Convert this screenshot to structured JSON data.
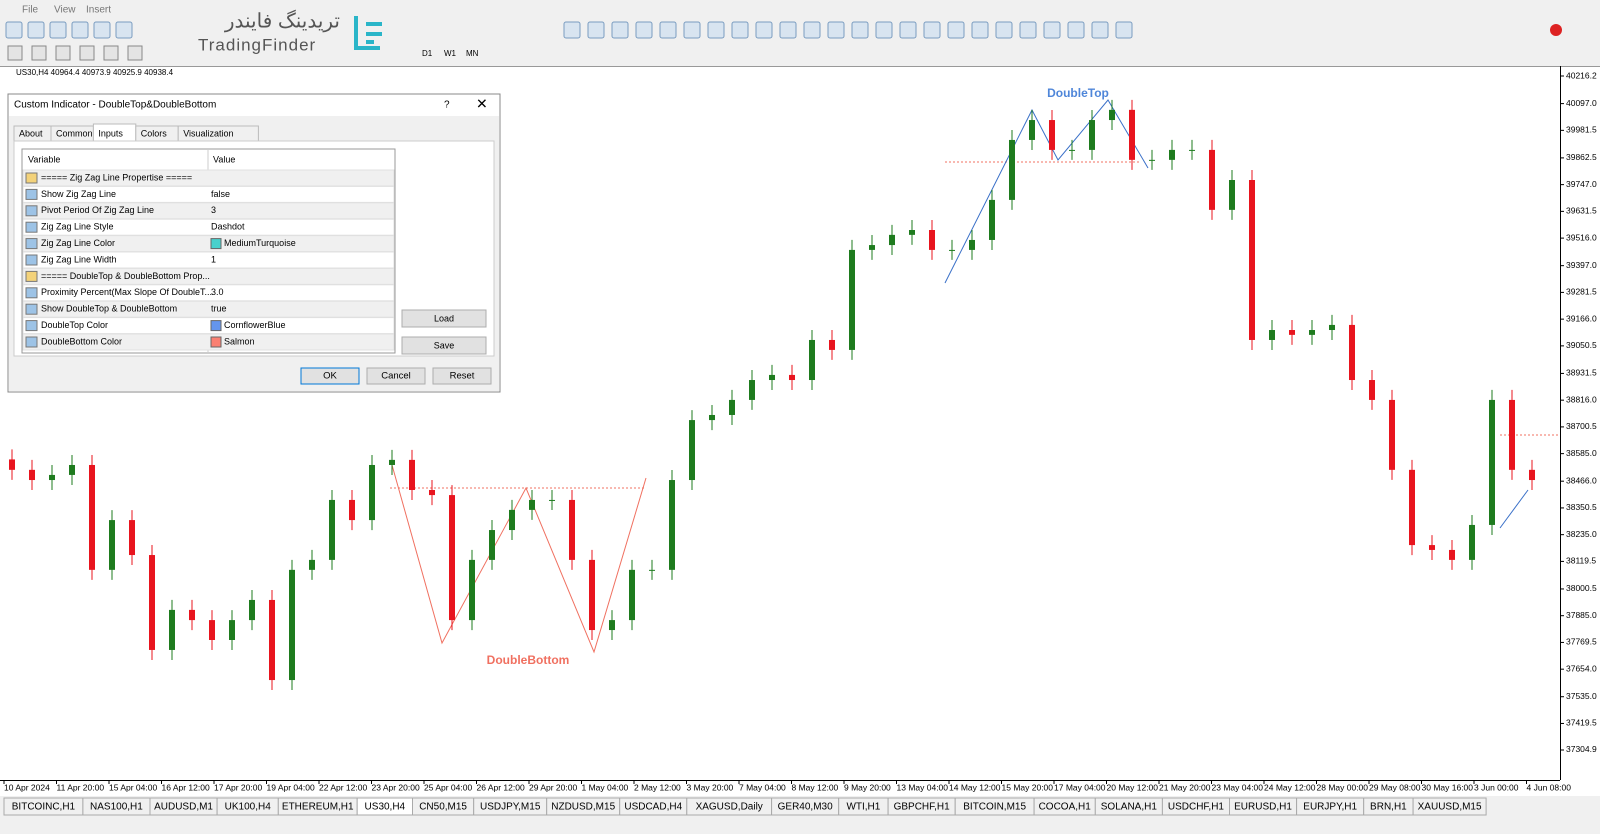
{
  "menu": [
    "File",
    "View",
    "Insert"
  ],
  "watermark": {
    "persian": "تریدینگ فایندر",
    "latin": "TradingFinder"
  },
  "timeframes": [
    "D1",
    "W1",
    "MN"
  ],
  "chart": {
    "symbol_info": "US30,H4  40964.4 40973.9 40925.9 40938.4",
    "annotations": {
      "double_top": "DoubleTop",
      "double_bottom": "DoubleBottom"
    },
    "first_open": 38560,
    "closes": [
      38515,
      38471,
      38493,
      38536,
      38083,
      38298,
      38147,
      37737,
      37910,
      37866,
      37780,
      37866,
      37953,
      37607,
      38083,
      38126,
      38385,
      38298,
      38536,
      38558,
      38428,
      38406,
      37866,
      38126,
      38255,
      38342,
      38385,
      38385,
      38126,
      37823,
      37866,
      38083,
      38083,
      38471,
      38730,
      38752,
      38817,
      38903,
      38925,
      38903,
      39076,
      39033,
      39465,
      39486,
      39530,
      39551,
      39465,
      39465,
      39508,
      39681,
      39940,
      40026,
      39897,
      39897,
      40026,
      40070,
      39854,
      39854,
      39897,
      39897,
      39638,
      39767,
      39076,
      39119,
      39098,
      39119,
      39141,
      38903,
      38817,
      38515,
      38190,
      38169,
      38126,
      38277,
      38817,
      38515,
      38471
    ],
    "up_color": "#1e7b1e",
    "down_color": "#e8141e",
    "ylim": [
      37183.9,
      40250.8
    ],
    "yticks": [
      {
        "value": 40216.2,
        "label": "40216.2"
      },
      {
        "value": 40097.0,
        "label": "40097.0"
      },
      {
        "value": 39981.5,
        "label": "39981.5"
      },
      {
        "value": 39862.5,
        "label": "39862.5"
      },
      {
        "value": 39747.0,
        "label": "39747.0"
      },
      {
        "value": 39631.5,
        "label": "39631.5"
      },
      {
        "value": 39516.0,
        "label": "39516.0"
      },
      {
        "value": 39397.0,
        "label": "39397.0"
      },
      {
        "value": 39281.5,
        "label": "39281.5"
      },
      {
        "value": 39166.0,
        "label": "39166.0"
      },
      {
        "value": 39050.5,
        "label": "39050.5"
      },
      {
        "value": 38931.5,
        "label": "38931.5"
      },
      {
        "value": 38816.0,
        "label": "38816.0"
      },
      {
        "value": 38700.5,
        "label": "38700.5"
      },
      {
        "value": 38585.0,
        "label": "38585.0"
      },
      {
        "value": 38466.0,
        "label": "38466.0"
      },
      {
        "value": 38350.5,
        "label": "38350.5"
      },
      {
        "value": 38235.0,
        "label": "38235.0"
      },
      {
        "value": 38119.5,
        "label": "38119.5"
      },
      {
        "value": 38000.5,
        "label": "38000.5"
      },
      {
        "value": 37885.0,
        "label": "37885.0"
      },
      {
        "value": 37769.5,
        "label": "37769.5"
      },
      {
        "value": 37654.0,
        "label": "37654.0"
      },
      {
        "value": 37535.0,
        "label": "37535.0"
      },
      {
        "value": 37419.5,
        "label": "37419.5"
      },
      {
        "value": 37304.9,
        "label": "37304.9"
      }
    ],
    "x_labels": [
      "10 Apr 2024",
      "11 Apr 20:00",
      "15 Apr 04:00",
      "16 Apr 12:00",
      "17 Apr 20:00",
      "19 Apr 04:00",
      "22 Apr 12:00",
      "23 Apr 20:00",
      "25 Apr 04:00",
      "26 Apr 12:00",
      "29 Apr 20:00",
      "1 May 04:00",
      "2 May 12:00",
      "3 May 20:00",
      "7 May 04:00",
      "8 May 12:00",
      "9 May 20:00",
      "13 May 04:00",
      "14 May 12:00",
      "15 May 20:00",
      "17 May 04:00",
      "20 May 12:00",
      "21 May 20:00",
      "23 May 04:00",
      "24 May 12:00",
      "28 May 00:00",
      "29 May 08:00",
      "30 May 16:00",
      "3 Jun 00:00",
      "4 Jun 08:00"
    ]
  },
  "dialog": {
    "title": "Custom Indicator - DoubleTop&DoubleBottom",
    "help": "?",
    "tabs": [
      "About",
      "Common",
      "Inputs",
      "Colors",
      "Visualization"
    ],
    "active_tab": 2,
    "columns": [
      "Variable",
      "Value"
    ],
    "rows": [
      {
        "variable": "===== Zig Zag Line Propertise ====="
      },
      {
        "variable": "Show Zig Zag Line",
        "value": "false"
      },
      {
        "variable": "Pivot Period Of Zig Zag Line",
        "value": "3"
      },
      {
        "variable": "Zig Zag Line Style",
        "value": "Dashdot"
      },
      {
        "variable": "Zig Zag Line Color",
        "value": "MediumTurquoise",
        "swatch": "#48d1cc"
      },
      {
        "variable": "Zig Zag Line Width",
        "value": "1"
      },
      {
        "variable": "===== DoubleTop & DoubleBottom Prop..."
      },
      {
        "variable": "Proximity Percent(Max Slope Of DoubleT...",
        "value": "3.0"
      },
      {
        "variable": "Show DoubleTop & DoubleBottom",
        "value": "true"
      },
      {
        "variable": "DoubleTop Color",
        "value": "CornflowerBlue",
        "swatch": "#6495ed"
      },
      {
        "variable": "DoubleBottom Color",
        "value": "Salmon",
        "swatch": "#fa8072"
      }
    ],
    "side_buttons": [
      "Load",
      "Save"
    ],
    "buttons": [
      "OK",
      "Cancel",
      "Reset"
    ]
  },
  "symbol_tabs": [
    "BITCOINC,H1",
    "NAS100,H1",
    "AUDUSD,M1",
    "UK100,H4",
    "ETHEREUM,H1",
    "US30,H4",
    "CN50,M15",
    "USDJPY,M15",
    "NZDUSD,M15",
    "USDCAD,H4",
    "XAGUSD,Daily",
    "GER40,M30",
    "WTI,H1",
    "GBPCHF,H1",
    "BITCOIN,M15",
    "COCOA,H1",
    "SOLANA,H1",
    "USDCHF,H1",
    "EURUSD,H1",
    "EURJPY,H1",
    "BRN,H1",
    "XAUUSD,M15"
  ],
  "active_symbol_tab": 5
}
